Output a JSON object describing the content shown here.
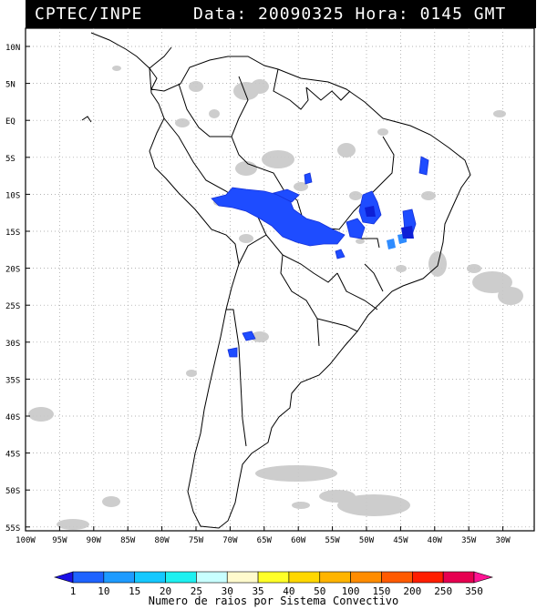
{
  "header": {
    "source": "CPTEC/INPE",
    "datetime": "Data: 20090325 Hora: 0145 GMT"
  },
  "map": {
    "lat_labels": [
      "10N",
      "5N",
      "EQ",
      "5S",
      "10S",
      "15S",
      "20S",
      "25S",
      "30S",
      "35S",
      "40S",
      "45S",
      "50S",
      "55S"
    ],
    "lon_labels": [
      "100W",
      "95W",
      "90W",
      "85W",
      "80W",
      "75W",
      "70W",
      "65W",
      "60W",
      "55W",
      "50W",
      "45W",
      "40W",
      "35W",
      "30W"
    ],
    "grid": "dotted",
    "colors": {
      "land_outline": "#000000",
      "cloud_gray": "#c8c8c8",
      "lightning_blue": "#1e4cff",
      "lightning_dark": "#0d1fd6",
      "lightning_light": "#2f8cff"
    }
  },
  "colorbar": {
    "labels": [
      "1",
      "10",
      "15",
      "20",
      "25",
      "30",
      "35",
      "40",
      "50",
      "100",
      "150",
      "200",
      "250",
      "350"
    ],
    "colors": [
      "#1a10e6",
      "#1e63ff",
      "#1e9bff",
      "#14c8ff",
      "#1ef0f0",
      "#c8ffff",
      "#fffacd",
      "#ffff28",
      "#ffd700",
      "#ffb400",
      "#ff8c00",
      "#ff5a00",
      "#ff1e00",
      "#e60050",
      "#ff1493"
    ],
    "title": "Numero de raios por Sistema Convectivo"
  }
}
